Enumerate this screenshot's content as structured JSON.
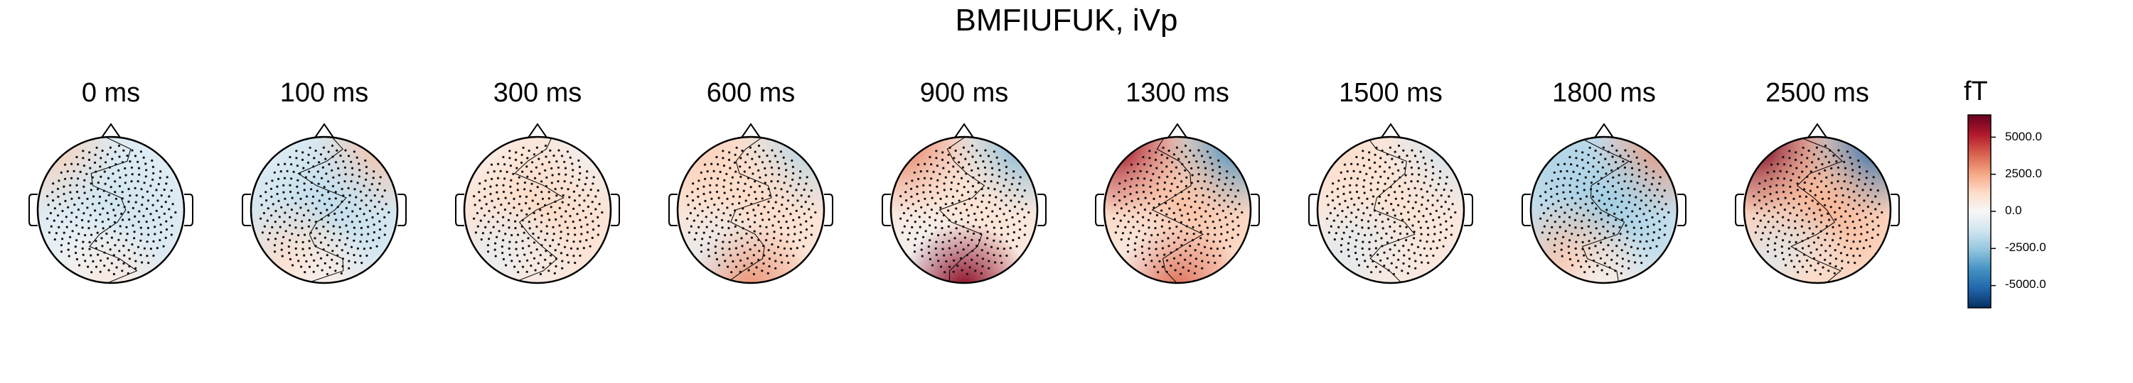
{
  "chart_data": {
    "type": "heatmap",
    "title": "BMFIUFUK, iVp",
    "panels": [
      {
        "time_label": "0 ms",
        "field": [
          0.25,
          -0.1,
          -0.2,
          -0.05,
          0.1
        ]
      },
      {
        "time_label": "100 ms",
        "field": [
          -0.1,
          0.3,
          -0.25,
          0.2,
          0.05
        ]
      },
      {
        "time_label": "300 ms",
        "field": [
          0.05,
          -0.05,
          0.2,
          -0.1,
          0.1
        ]
      },
      {
        "time_label": "600 ms",
        "field": [
          0.25,
          -0.3,
          0.2,
          -0.1,
          0.45
        ]
      },
      {
        "time_label": "900 ms",
        "field": [
          0.5,
          -0.45,
          0.15,
          -0.05,
          0.9
        ]
      },
      {
        "time_label": "1300 ms",
        "field": [
          0.85,
          -0.6,
          0.3,
          0.05,
          0.55
        ]
      },
      {
        "time_label": "1500 ms",
        "field": [
          0.2,
          -0.2,
          0.15,
          -0.15,
          0.1
        ]
      },
      {
        "time_label": "1800 ms",
        "field": [
          -0.3,
          0.45,
          -0.35,
          0.3,
          0.05
        ]
      },
      {
        "time_label": "2500 ms",
        "field": [
          0.95,
          -0.75,
          0.35,
          -0.15,
          0.2
        ]
      }
    ],
    "colorbar": {
      "unit": "fT",
      "ticks": [
        "5000.0",
        "2500.0",
        "0.0",
        "-2500.0",
        "-5000.0"
      ],
      "tick_values": [
        5000,
        2500,
        0,
        -2500,
        -5000
      ],
      "range": [
        -6500,
        6500
      ],
      "colormap": [
        "#053061",
        "#2166ac",
        "#4393c3",
        "#92c5de",
        "#d1e5f0",
        "#f7f7f7",
        "#fddbc7",
        "#f4a582",
        "#d6604d",
        "#b2182b",
        "#67001f"
      ]
    }
  }
}
